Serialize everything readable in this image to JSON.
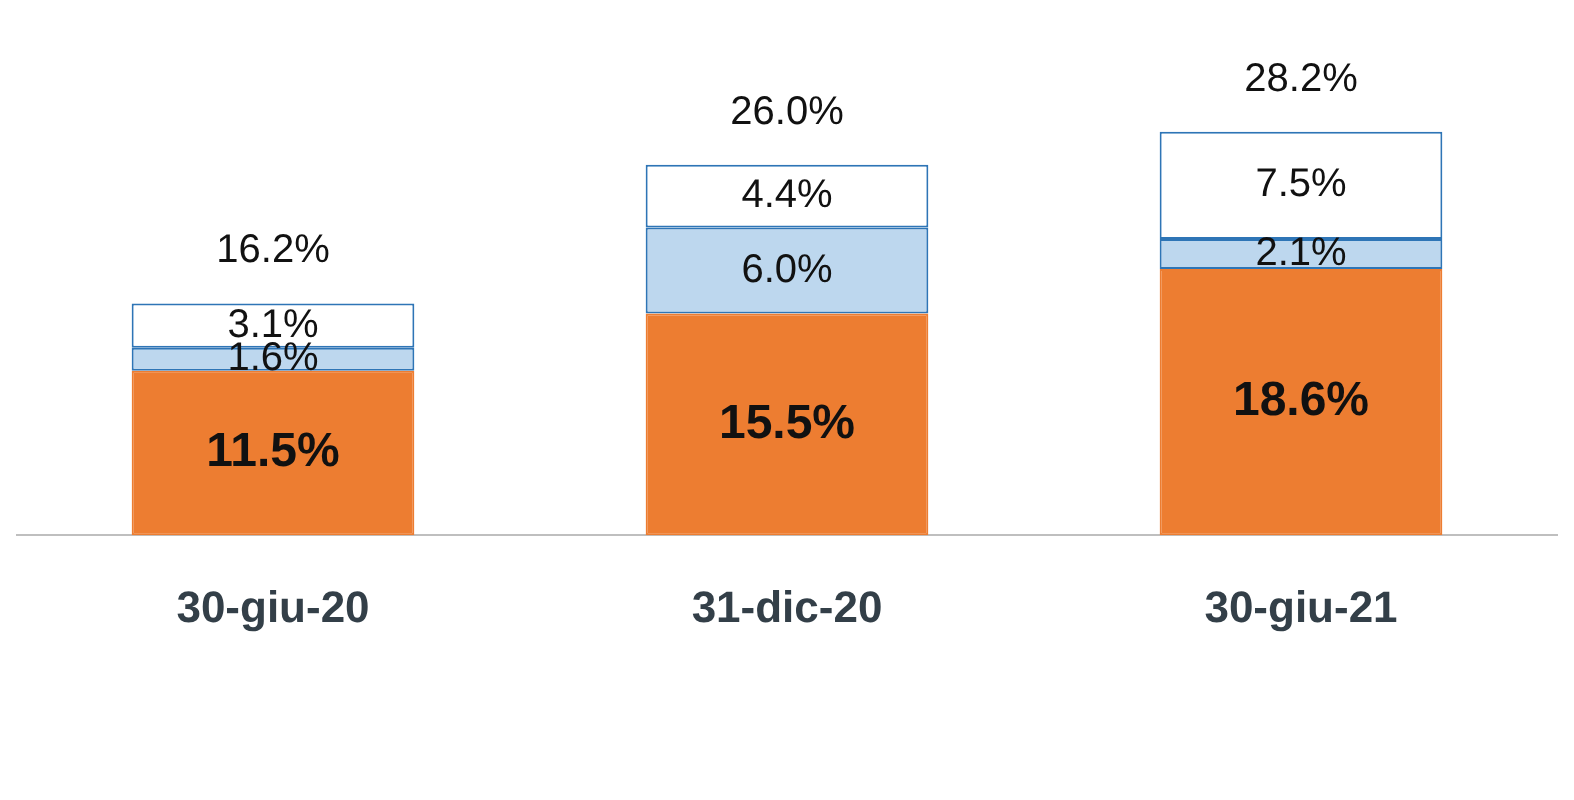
{
  "chart_data": {
    "type": "bar",
    "stacked": true,
    "categories": [
      "30-giu-20",
      "31-dic-20",
      "30-giu-21"
    ],
    "series": [
      {
        "color": "#ed7d31",
        "values": [
          11.5,
          15.5,
          18.6
        ],
        "value_labels": [
          "11.5%",
          "15.5%",
          "18.6%"
        ]
      },
      {
        "color": "#bdd7ee",
        "values": [
          1.6,
          6.0,
          2.1
        ],
        "value_labels": [
          "1.6%",
          "6.0%",
          "2.1%"
        ]
      },
      {
        "color": "#ffffff",
        "values": [
          3.1,
          4.4,
          7.5
        ],
        "value_labels": [
          "3.1%",
          "4.4%",
          "7.5%"
        ]
      }
    ],
    "totals": [
      "16.2%",
      "26.0%",
      "28.2%"
    ],
    "grid": false,
    "legend": false
  }
}
